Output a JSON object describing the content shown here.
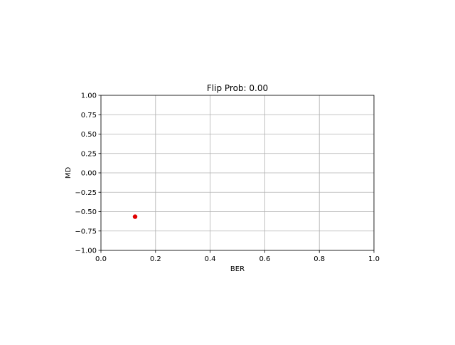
{
  "chart_data": {
    "type": "scatter",
    "title": "Flip Prob: 0.00",
    "xlabel": "BER",
    "ylabel": "MD",
    "xlim": [
      0.0,
      1.0
    ],
    "ylim": [
      -1.0,
      1.0
    ],
    "xticks": [
      0.0,
      0.2,
      0.4,
      0.6,
      0.8,
      1.0
    ],
    "xtick_labels": [
      "0.0",
      "0.2",
      "0.4",
      "0.6",
      "0.8",
      "1.0"
    ],
    "yticks": [
      -1.0,
      -0.75,
      -0.5,
      -0.25,
      0.0,
      0.25,
      0.5,
      0.75,
      1.0
    ],
    "ytick_labels": [
      "−1.00",
      "−0.75",
      "−0.50",
      "−0.25",
      "0.00",
      "0.25",
      "0.50",
      "0.75",
      "1.00"
    ],
    "grid": true,
    "series": [
      {
        "color": "#e00000",
        "points": [
          {
            "x": 0.125,
            "y": -0.565
          }
        ]
      }
    ]
  }
}
